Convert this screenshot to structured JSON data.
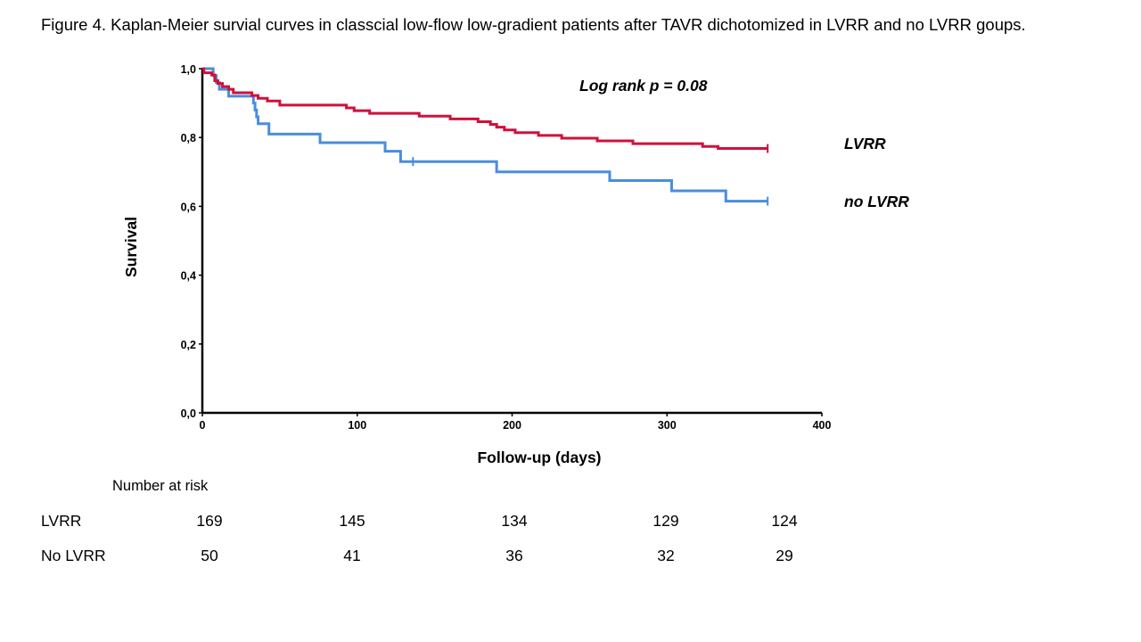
{
  "caption": "Figure 4. Kaplan-Meier survial curves in classcial low-flow low-gradient patients after TAVR dichotomized in LVRR and no LVRR goups.",
  "chart_data": {
    "type": "line",
    "step": true,
    "xlabel": "Follow-up (days)",
    "ylabel": "Survival",
    "xlim": [
      0,
      400
    ],
    "ylim": [
      0,
      1
    ],
    "xticks": [
      "0",
      "100",
      "200",
      "300",
      "400"
    ],
    "yticks": [
      "0,0",
      "0,2",
      "0,4",
      "0,6",
      "0,8",
      "1,0"
    ],
    "xtick_values": [
      0,
      100,
      200,
      300,
      400
    ],
    "ytick_values": [
      0,
      0.2,
      0.4,
      0.6,
      0.8,
      1.0
    ],
    "annotation": "Log rank p = 0.08",
    "grid": false,
    "series": [
      {
        "name": "LVRR",
        "color": "#d0113a",
        "points": [
          [
            0,
            1.0
          ],
          [
            1,
            0.988
          ],
          [
            6,
            0.982
          ],
          [
            8,
            0.965
          ],
          [
            10,
            0.957
          ],
          [
            13,
            0.948
          ],
          [
            17,
            0.94
          ],
          [
            20,
            0.93
          ],
          [
            32,
            0.922
          ],
          [
            36,
            0.914
          ],
          [
            42,
            0.906
          ],
          [
            50,
            0.894
          ],
          [
            93,
            0.886
          ],
          [
            98,
            0.878
          ],
          [
            108,
            0.87
          ],
          [
            140,
            0.862
          ],
          [
            160,
            0.854
          ],
          [
            178,
            0.846
          ],
          [
            186,
            0.838
          ],
          [
            190,
            0.83
          ],
          [
            195,
            0.822
          ],
          [
            202,
            0.814
          ],
          [
            217,
            0.806
          ],
          [
            232,
            0.798
          ],
          [
            255,
            0.79
          ],
          [
            278,
            0.782
          ],
          [
            323,
            0.774
          ],
          [
            333,
            0.768
          ],
          [
            365,
            0.768
          ]
        ],
        "censor": [
          365
        ]
      },
      {
        "name": "no LVRR",
        "color": "#4a8ddc",
        "points": [
          [
            0,
            1.0
          ],
          [
            7,
            0.98
          ],
          [
            9,
            0.96
          ],
          [
            11,
            0.94
          ],
          [
            17,
            0.92
          ],
          [
            33,
            0.9
          ],
          [
            34,
            0.88
          ],
          [
            35,
            0.86
          ],
          [
            36,
            0.84
          ],
          [
            43,
            0.81
          ],
          [
            76,
            0.785
          ],
          [
            118,
            0.76
          ],
          [
            128,
            0.73
          ],
          [
            190,
            0.7
          ],
          [
            263,
            0.675
          ],
          [
            303,
            0.645
          ],
          [
            338,
            0.615
          ],
          [
            365,
            0.615
          ]
        ],
        "censor": [
          136,
          365
        ]
      }
    ]
  },
  "legend_labels": {
    "lvrr": "LVRR",
    "no_lvrr": "no LVRR"
  },
  "risk_table": {
    "title": "Number at risk",
    "rows": [
      {
        "label": "LVRR",
        "values": [
          "169",
          "145",
          "134",
          "129",
          "124"
        ]
      },
      {
        "label": "No LVRR",
        "values": [
          "50",
          "41",
          "36",
          "32",
          "29"
        ]
      }
    ]
  }
}
